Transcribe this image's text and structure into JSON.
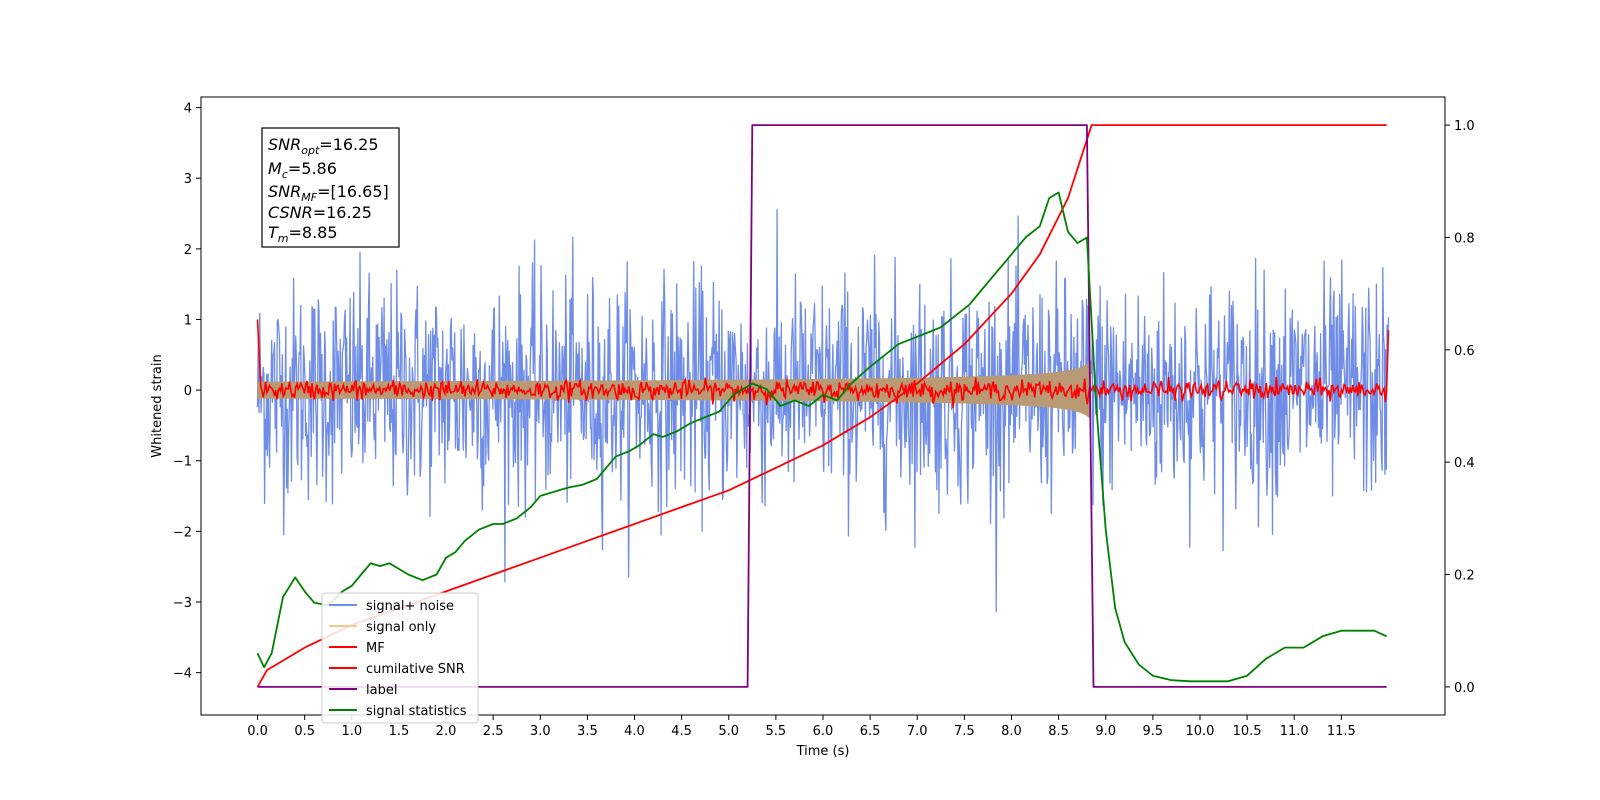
{
  "chart_data": {
    "type": "line",
    "xlabel": "Time (s)",
    "ylabel": "Whitened strain",
    "xlim": [
      -0.6,
      12.6
    ],
    "ylim_left": [
      -4.6,
      4.15
    ],
    "ylim_right": [
      -0.05,
      1.05
    ],
    "x_ticks": [
      0.0,
      0.5,
      1.0,
      1.5,
      2.0,
      2.5,
      3.0,
      3.5,
      4.0,
      4.5,
      5.0,
      5.5,
      6.0,
      6.5,
      7.0,
      7.5,
      8.0,
      8.5,
      9.0,
      9.5,
      10.0,
      10.5,
      11.0,
      11.5
    ],
    "x_tick_labels": [
      "0.0",
      "0.5",
      "1.0",
      "1.5",
      "2.0",
      "2.5",
      "3.0",
      "3.5",
      "4.0",
      "4.5",
      "5.0",
      "5.5",
      "6.0",
      "6.5",
      "7.0",
      "7.5",
      "8.0",
      "8.5",
      "9.0",
      "9.5",
      "10.0",
      "10.5",
      "11.0",
      "11.5"
    ],
    "y_left_ticks": [
      4,
      3,
      2,
      1,
      0,
      -1,
      -2,
      -3,
      -4
    ],
    "y_left_tick_labels": [
      "4",
      "3",
      "2",
      "1",
      "0",
      "−1",
      "−2",
      "−3",
      "−4"
    ],
    "y_right_ticks": [
      1.0,
      0.8,
      0.6,
      0.4,
      0.2,
      0.0
    ],
    "y_right_tick_labels": [
      "1.0",
      "0.8",
      "0.6",
      "0.4",
      "0.2",
      "0.0"
    ],
    "legend_position": "lower-left",
    "series": [
      {
        "name": "signal+ noise",
        "color": "#6f8de6",
        "axis": "left",
        "kind": "noise",
        "duration": [
          0.0,
          12.0
        ],
        "envelope_approx": [
          -2.0,
          2.1
        ],
        "peaks_approx": [
          -4.1,
          3.8
        ]
      },
      {
        "name": "signal only",
        "color": "#f5c98a",
        "axis": "left",
        "kind": "chirp",
        "duration": [
          0.0,
          8.85
        ],
        "amplitude_end_approx": 0.9
      },
      {
        "name": "MF",
        "color": "#ff0000",
        "axis": "left",
        "kind": "noise-small",
        "duration": [
          0.0,
          12.0
        ],
        "amplitude_approx": 0.15,
        "edge_value_start": 1.0,
        "edge_value_end": 0.85
      },
      {
        "name": "cumilative SNR",
        "color": "#ff0000",
        "axis": "right",
        "x": [
          0.0,
          0.1,
          0.5,
          1.0,
          1.5,
          2.0,
          2.5,
          3.0,
          3.5,
          4.0,
          4.5,
          5.0,
          5.5,
          6.0,
          6.5,
          7.0,
          7.5,
          8.0,
          8.3,
          8.6,
          8.85,
          9.0,
          10.0,
          11.0,
          11.98
        ],
        "y": [
          0.0,
          0.03,
          0.07,
          0.11,
          0.14,
          0.17,
          0.2,
          0.23,
          0.26,
          0.29,
          0.32,
          0.35,
          0.39,
          0.43,
          0.48,
          0.54,
          0.61,
          0.7,
          0.77,
          0.87,
          1.0,
          1.0,
          1.0,
          1.0,
          1.0
        ]
      },
      {
        "name": "label",
        "color": "#800080",
        "axis": "right",
        "x": [
          0.0,
          5.2,
          5.25,
          8.8,
          8.87,
          11.98
        ],
        "y": [
          0.0,
          0.0,
          1.0,
          1.0,
          0.0,
          0.0
        ]
      },
      {
        "name": "signal statistics",
        "color": "#008000",
        "axis": "right",
        "x": [
          0.0,
          0.07,
          0.15,
          0.27,
          0.4,
          0.5,
          0.6,
          0.75,
          0.9,
          1.0,
          1.1,
          1.2,
          1.3,
          1.4,
          1.5,
          1.6,
          1.75,
          1.9,
          2.0,
          2.1,
          2.2,
          2.35,
          2.5,
          2.6,
          2.75,
          2.9,
          3.0,
          3.1,
          3.2,
          3.3,
          3.45,
          3.6,
          3.7,
          3.8,
          3.95,
          4.05,
          4.2,
          4.3,
          4.45,
          4.6,
          4.75,
          4.9,
          5.05,
          5.15,
          5.25,
          5.4,
          5.55,
          5.7,
          5.85,
          6.0,
          6.15,
          6.3,
          6.5,
          6.65,
          6.8,
          6.95,
          7.1,
          7.25,
          7.4,
          7.55,
          7.7,
          7.8,
          7.95,
          8.05,
          8.15,
          8.3,
          8.4,
          8.5,
          8.6,
          8.7,
          8.8,
          8.9,
          9.0,
          9.1,
          9.2,
          9.35,
          9.5,
          9.7,
          9.9,
          10.1,
          10.3,
          10.5,
          10.7,
          10.9,
          11.1,
          11.3,
          11.5,
          11.7,
          11.85,
          11.98
        ],
        "y": [
          0.06,
          0.035,
          0.06,
          0.16,
          0.195,
          0.17,
          0.15,
          0.145,
          0.17,
          0.18,
          0.2,
          0.22,
          0.215,
          0.22,
          0.21,
          0.2,
          0.19,
          0.2,
          0.23,
          0.24,
          0.26,
          0.28,
          0.29,
          0.29,
          0.3,
          0.32,
          0.34,
          0.345,
          0.35,
          0.355,
          0.36,
          0.37,
          0.39,
          0.41,
          0.42,
          0.43,
          0.45,
          0.445,
          0.455,
          0.47,
          0.48,
          0.49,
          0.52,
          0.53,
          0.54,
          0.53,
          0.5,
          0.51,
          0.5,
          0.52,
          0.51,
          0.54,
          0.57,
          0.59,
          0.61,
          0.62,
          0.63,
          0.64,
          0.66,
          0.68,
          0.71,
          0.73,
          0.76,
          0.78,
          0.8,
          0.82,
          0.87,
          0.88,
          0.81,
          0.79,
          0.8,
          0.5,
          0.28,
          0.14,
          0.08,
          0.04,
          0.02,
          0.012,
          0.01,
          0.01,
          0.01,
          0.02,
          0.05,
          0.07,
          0.07,
          0.09,
          0.1,
          0.1,
          0.1,
          0.09
        ]
      }
    ]
  },
  "legend": [
    {
      "label": "signal+ noise",
      "color": "#6f8de6"
    },
    {
      "label": "signal only",
      "color": "#f5c98a"
    },
    {
      "label": "MF",
      "color": "#ff0000"
    },
    {
      "label": "cumilative SNR",
      "color": "#ff0000"
    },
    {
      "label": "label",
      "color": "#800080"
    },
    {
      "label": "signal statistics",
      "color": "#008000"
    }
  ],
  "info_box": {
    "line1": {
      "main": "SNR",
      "sub": "opt",
      "rest": "=16.25"
    },
    "line2": {
      "main": "M",
      "sub": "c",
      "rest": "=5.86"
    },
    "line3": {
      "main": "SNR",
      "sub": "MF",
      "rest": "=[16.65]"
    },
    "line4": {
      "main": "CSNR",
      "sub": "",
      "rest": "=16.25"
    },
    "line5": {
      "main": "T",
      "sub": "m",
      "rest": "=8.85"
    }
  }
}
